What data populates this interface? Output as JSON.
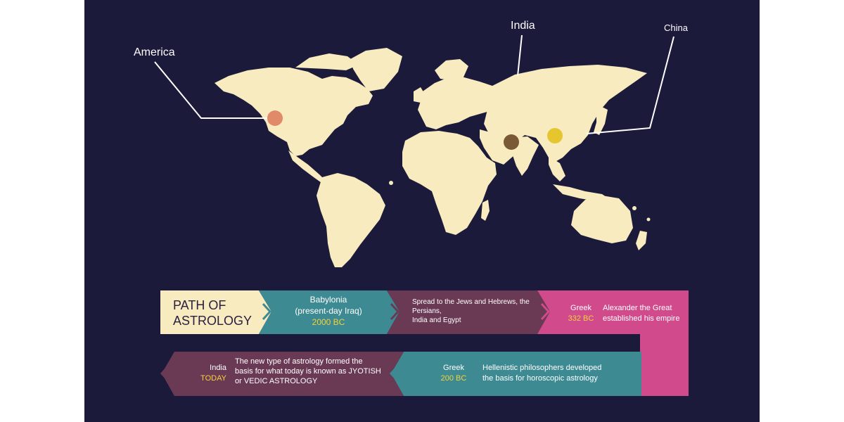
{
  "map": {
    "labels": {
      "america": "America",
      "india": "India",
      "china": "China"
    },
    "colors": {
      "land": "#f7ebbf",
      "background": "#1b1a3b",
      "america_dot": "#e08a6a",
      "india_dot": "#7a5a36",
      "china_dot": "#e6c62f",
      "leader": "#ffffff"
    }
  },
  "timeline": {
    "title_line1": "PATH OF",
    "title_line2": "ASTROLOGY",
    "step1": {
      "place_line1": "Babylonia",
      "place_line2": "(present-day Iraq)",
      "date": "2000 BC"
    },
    "step2": {
      "line1": "Spread to the Jews and Hebrews, the",
      "line2": "Persians,",
      "line3": "India and Egypt"
    },
    "step3": {
      "place": "Greek",
      "date": "332 BC",
      "desc_line1": "Alexander the Great",
      "desc_line2": "established his empire"
    },
    "step4": {
      "place": "Greek",
      "date": "200 BC",
      "desc_line1": "Hellenistic philosophers developed",
      "desc_line2": "the basis for horoscopic astrology"
    },
    "step5": {
      "place": "India",
      "date": "TODAY",
      "desc_line1": "The new type of astrology formed the",
      "desc_line2": "basis for what today is known as JYOTISH",
      "desc_line3": "or VEDIC ASTROLOGY"
    },
    "colors": {
      "title_bg": "#f7ebbf",
      "teal": "#3d8a92",
      "plum": "#6a3a55",
      "pink": "#d14b8c",
      "date_yellow": "#f2d23c",
      "title_text": "#2a2040"
    }
  }
}
